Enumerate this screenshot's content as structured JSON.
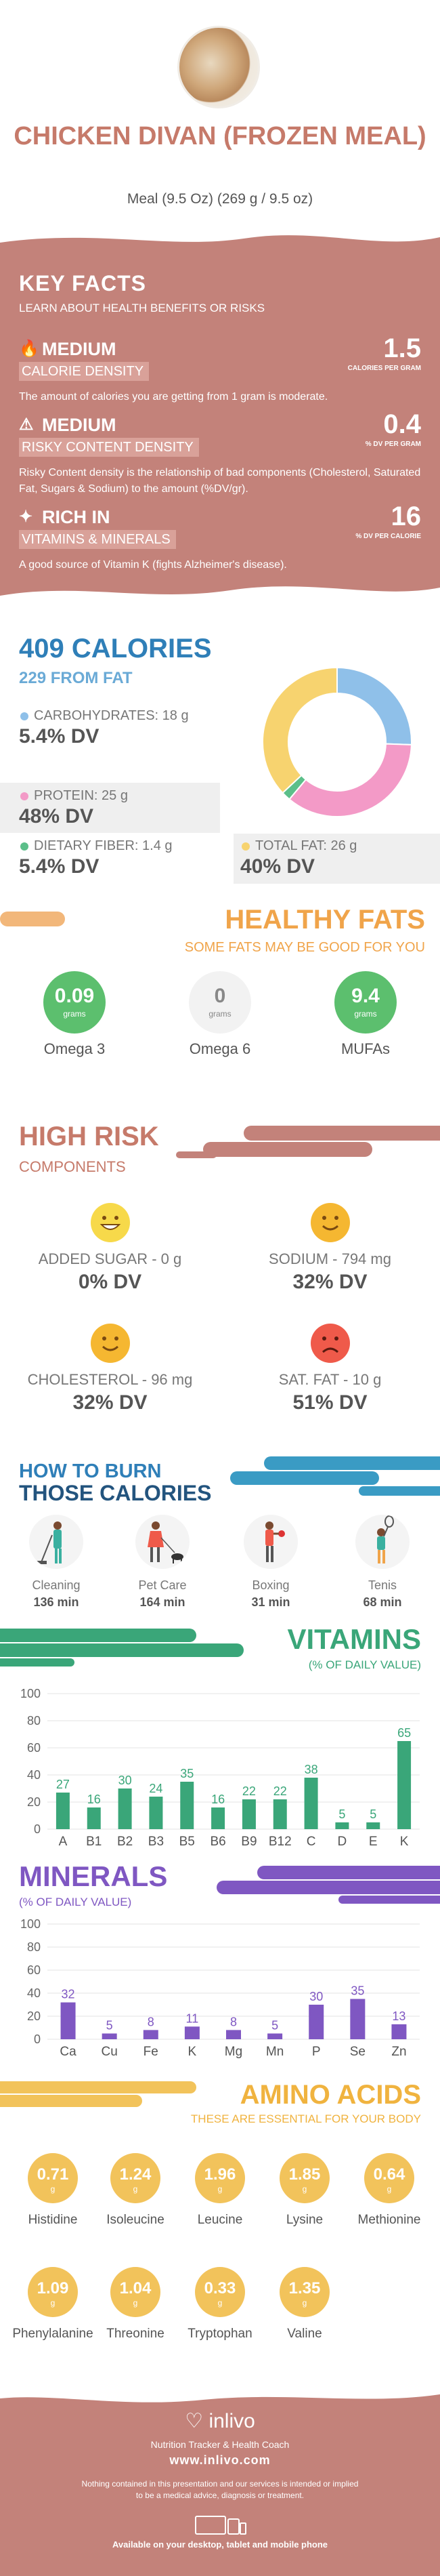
{
  "header": {
    "title": "CHICKEN DIVAN (FROZEN MEAL)",
    "subtitle": "Meal (9.5 Oz) (269 g / 9.5 oz)"
  },
  "key_facts": {
    "title": "KEY FACTS",
    "subtitle": "LEARN ABOUT HEALTH BENEFITS OR RISKS",
    "items": [
      {
        "level": "MEDIUM",
        "name": "CALORIE DENSITY",
        "value": "1.5",
        "unit": "CALORIES PER GRAM",
        "desc": "The amount of calories you are getting from 1 gram is moderate.",
        "icon": "flame-icon"
      },
      {
        "level": "MEDIUM",
        "name": "RISKY CONTENT DENSITY",
        "value": "0.4",
        "unit": "% DV PER GRAM",
        "desc": "Risky Content density is the relationship of bad components (Cholesterol, Saturated Fat, Sugars & Sodium) to the amount (%DV/gr).",
        "icon": "warning-icon"
      },
      {
        "level": "RICH  IN",
        "name": "VITAMINS & MINERALS",
        "value": "16",
        "unit": "% DV PER CALORIE",
        "desc": "A good source of Vitamin K (fights Alzheimer's disease).",
        "icon": "leaf-icon"
      }
    ]
  },
  "calories": {
    "title": "409 CALORIES",
    "from_fat": "229 FROM FAT",
    "nutrients": [
      {
        "label": "CARBOHYDRATES: 18 g",
        "dv": "5.4% DV",
        "color": "#8fc0e9"
      },
      {
        "label": "PROTEIN: 25 g",
        "dv": "48% DV",
        "color": "#f39ac7"
      },
      {
        "label": "DIETARY FIBER: 1.4 g",
        "dv": "5.4% DV",
        "color": "#5cbf8a"
      },
      {
        "label": "TOTAL FAT: 26 g",
        "dv": "40% DV",
        "color": "#f7d36f"
      }
    ]
  },
  "chart_data": [
    {
      "type": "pie",
      "categories": [
        "Carbohydrates",
        "Protein",
        "Dietary Fiber",
        "Total Fat"
      ],
      "values": [
        18,
        25,
        1.4,
        26
      ],
      "colors": [
        "#8fc0e9",
        "#f39ac7",
        "#5cbf8a",
        "#f7d36f"
      ]
    },
    {
      "type": "bar",
      "title": "VITAMINS",
      "categories": [
        "A",
        "B1",
        "B2",
        "B3",
        "B5",
        "B6",
        "B9",
        "B12",
        "C",
        "D",
        "E",
        "K"
      ],
      "values": [
        27,
        16,
        30,
        24,
        35,
        16,
        22,
        22,
        38,
        5,
        5,
        65
      ],
      "ylim": [
        0,
        100
      ],
      "yticks": [
        0,
        20,
        40,
        60,
        80,
        100
      ],
      "color": "#3aa679"
    },
    {
      "type": "bar",
      "title": "MINERALS",
      "categories": [
        "Ca",
        "Cu",
        "Fe",
        "K",
        "Mg",
        "Mn",
        "P",
        "Se",
        "Zn"
      ],
      "values": [
        32,
        5,
        8,
        11,
        8,
        5,
        30,
        35,
        13
      ],
      "ylim": [
        0,
        100
      ],
      "yticks": [
        0,
        20,
        40,
        60,
        80,
        100
      ],
      "color": "#7f57c2"
    }
  ],
  "healthy_fats": {
    "title": "HEALTHY FATS",
    "subtitle": "SOME FATS MAY BE GOOD FOR YOU",
    "items": [
      {
        "value": "0.09",
        "unit": "grams",
        "name": "Omega 3",
        "color": "#5cbf6e"
      },
      {
        "value": "0",
        "unit": "grams",
        "name": "Omega 6",
        "color": "#f2f2f2"
      },
      {
        "value": "9.4",
        "unit": "grams",
        "name": "MUFAs",
        "color": "#5cbf6e"
      }
    ]
  },
  "high_risk": {
    "title": "HIGH RISK",
    "subtitle": "COMPONENTS",
    "items": [
      {
        "label": "ADDED SUGAR - 0 g",
        "dv": "0% DV",
        "face": "grin-face-icon",
        "color": "#f7d94a"
      },
      {
        "label": "SODIUM - 794 mg",
        "dv": "32% DV",
        "face": "smile-face-icon",
        "color": "#f5b731"
      },
      {
        "label": "CHOLESTEROL - 96 mg",
        "dv": "32% DV",
        "face": "smile-face-icon",
        "color": "#f5b731"
      },
      {
        "label": "SAT. FAT - 10 g",
        "dv": "51% DV",
        "face": "sad-face-icon",
        "color": "#ef5a4a"
      }
    ]
  },
  "burn": {
    "title_line1": "HOW TO BURN",
    "title_line2": "THOSE CALORIES",
    "activities": [
      {
        "name": "Cleaning",
        "minutes": "136 min",
        "icon": "cleaning-icon"
      },
      {
        "name": "Pet Care",
        "minutes": "164 min",
        "icon": "pet-care-icon"
      },
      {
        "name": "Boxing",
        "minutes": "31 min",
        "icon": "boxing-icon"
      },
      {
        "name": "Tenis",
        "minutes": "68 min",
        "icon": "tennis-icon"
      }
    ]
  },
  "vitamins": {
    "title": "VITAMINS",
    "subtitle": "(% OF DAILY VALUE)"
  },
  "minerals": {
    "title": "MINERALS",
    "subtitle": "(% OF DAILY VALUE)"
  },
  "amino": {
    "title": "AMINO ACIDS",
    "subtitle": "THESE ARE ESSENTIAL FOR YOUR BODY",
    "items": [
      {
        "value": "0.71",
        "unit": "g",
        "name": "Histidine"
      },
      {
        "value": "1.24",
        "unit": "g",
        "name": "Isoleucine"
      },
      {
        "value": "1.96",
        "unit": "g",
        "name": "Leucine"
      },
      {
        "value": "1.85",
        "unit": "g",
        "name": "Lysine"
      },
      {
        "value": "0.64",
        "unit": "g",
        "name": "Methionine"
      },
      {
        "value": "1.09",
        "unit": "g",
        "name": "Phenylalanine"
      },
      {
        "value": "1.04",
        "unit": "g",
        "name": "Threonine"
      },
      {
        "value": "0.33",
        "unit": "g",
        "name": "Tryptophan"
      },
      {
        "value": "1.35",
        "unit": "g",
        "name": "Valine"
      }
    ]
  },
  "footer": {
    "brand": "inlivo",
    "tagline": "Nutrition Tracker & Health Coach",
    "url": "www.inlivo.com",
    "disclaimer": "Nothing contained in this presentation and our services is intended or implied to be a medical advice, diagnosis or treatment.",
    "devices": "Available on your desktop, tablet and mobile phone"
  }
}
